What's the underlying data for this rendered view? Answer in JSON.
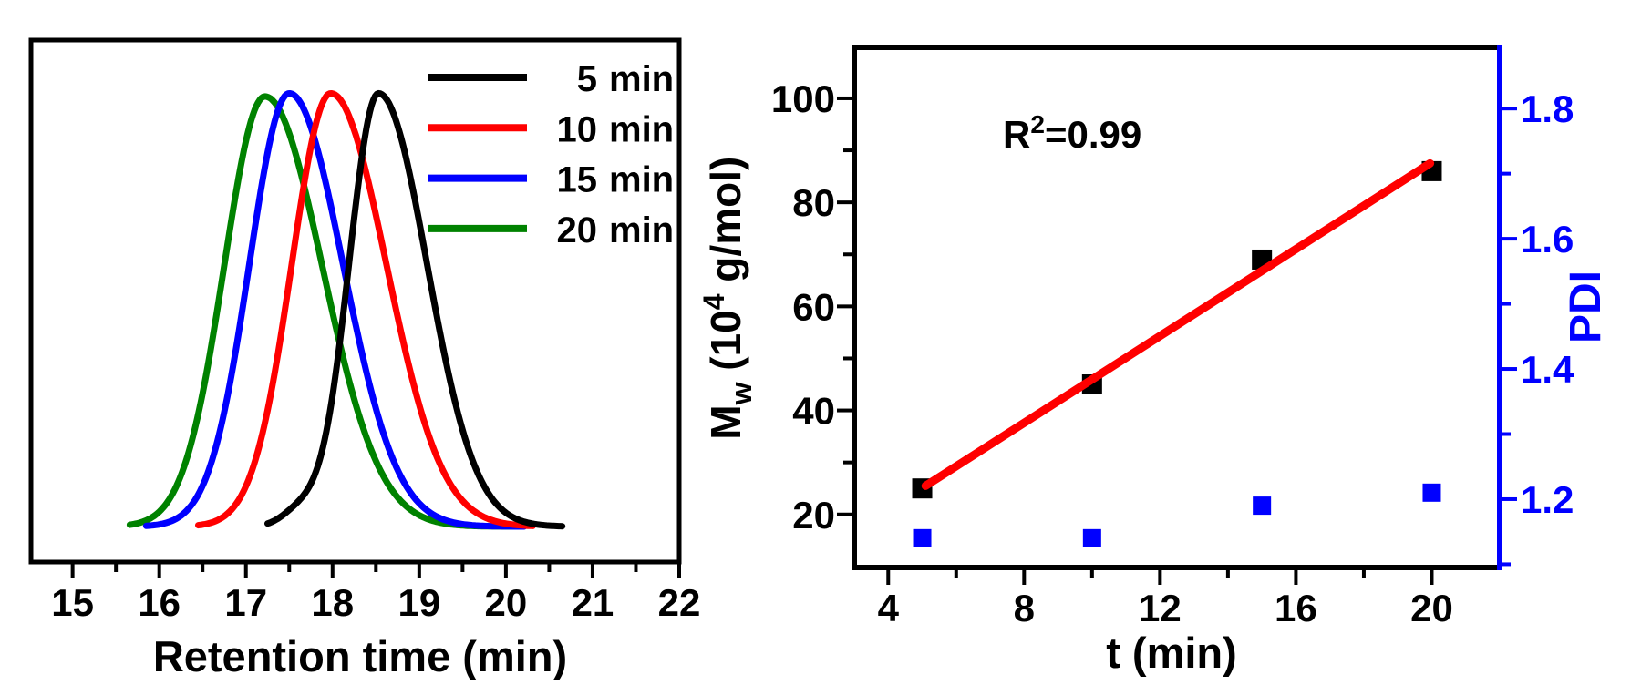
{
  "figure": {
    "background": "#ffffff"
  },
  "chart_data": [
    {
      "id": "gpc-chromatogram",
      "type": "line",
      "title": "",
      "xlabel": "Retention time (min)",
      "ylabel": "",
      "xlim": [
        14.52,
        22.0
      ],
      "ylim": [
        0,
        1
      ],
      "x_major_ticks": [
        15,
        16,
        17,
        18,
        19,
        20,
        21,
        22
      ],
      "x_minor_ticks": [
        15.5,
        16.5,
        17.5,
        18.5,
        19.5,
        20.5,
        21.5
      ],
      "grid": false,
      "legend_position": "top-right-inside",
      "baseline_level": 0.068,
      "series": [
        {
          "name": "5 min",
          "label_num": "5",
          "label_unit": "min",
          "color": "#000000",
          "peak_x": 18.53,
          "peak_height": 0.83,
          "sigma_left": 0.34,
          "sigma_right": 0.56,
          "x_start": 17.25,
          "x_end": 20.65,
          "foot_x": 17.62,
          "foot_height": 0.028,
          "foot_sigma": 0.2
        },
        {
          "name": "10 min",
          "label_num": "10",
          "label_unit": "min",
          "color": "#ff0000",
          "peak_x": 17.98,
          "peak_height": 0.83,
          "sigma_left": 0.45,
          "sigma_right": 0.64,
          "x_start": 16.45,
          "x_end": 20.32
        },
        {
          "name": "15 min",
          "label_num": "15",
          "label_unit": "min",
          "color": "#0000ff",
          "peak_x": 17.5,
          "peak_height": 0.83,
          "sigma_left": 0.46,
          "sigma_right": 0.62,
          "x_start": 15.85,
          "x_end": 20.22
        },
        {
          "name": "20 min",
          "label_num": "20",
          "label_unit": "min",
          "color": "#008200",
          "peak_x": 17.22,
          "peak_height": 0.824,
          "sigma_left": 0.47,
          "sigma_right": 0.66,
          "x_start": 15.66,
          "x_end": 20.18
        }
      ]
    },
    {
      "id": "mw-pdi-kinetics",
      "type": "scatter",
      "title": "",
      "xlabel": "t (min)",
      "ylabel_left": {
        "m1": "M",
        "sub": "w",
        "m2": " (10",
        "sup": "4",
        "m3": " g/mol)"
      },
      "ylabel_right": "PDI",
      "annotation": {
        "m1": "R",
        "sup": "2",
        "m2": "=0.99"
      },
      "xlim": [
        3.0,
        22.0
      ],
      "ylim_left": [
        9.8,
        109.8
      ],
      "ylim_right": [
        1.095,
        1.894
      ],
      "x_major_ticks": [
        4,
        8,
        12,
        16,
        20
      ],
      "x_minor_ticks": [
        6,
        10,
        14,
        18
      ],
      "y_left_major_ticks": [
        20,
        40,
        60,
        80,
        100
      ],
      "y_left_minor_ticks": [
        30,
        50,
        70,
        90
      ],
      "y_right_major_ticks": [
        1.2,
        1.4,
        1.6,
        1.8
      ],
      "y_right_minor_ticks": [
        1.1,
        1.3,
        1.5,
        1.7
      ],
      "grid": false,
      "axis_colors": {
        "left": "#000000",
        "right": "#0000ff"
      },
      "series": [
        {
          "name": "Mw",
          "type": "scatter",
          "marker": "square",
          "color": "#000000",
          "axis": "left",
          "x": [
            5,
            10,
            15,
            20
          ],
          "y": [
            25,
            45,
            69,
            86
          ]
        },
        {
          "name": "linear fit",
          "type": "line",
          "color": "#ff0000",
          "axis": "left",
          "x": [
            5.1,
            19.95
          ],
          "y": [
            25.5,
            87.5
          ],
          "r_squared": "0.99"
        },
        {
          "name": "PDI",
          "type": "scatter",
          "marker": "square",
          "color": "#0000ff",
          "axis": "right",
          "x": [
            5,
            10,
            15,
            20
          ],
          "y": [
            1.14,
            1.14,
            1.19,
            1.21
          ]
        }
      ]
    }
  ]
}
